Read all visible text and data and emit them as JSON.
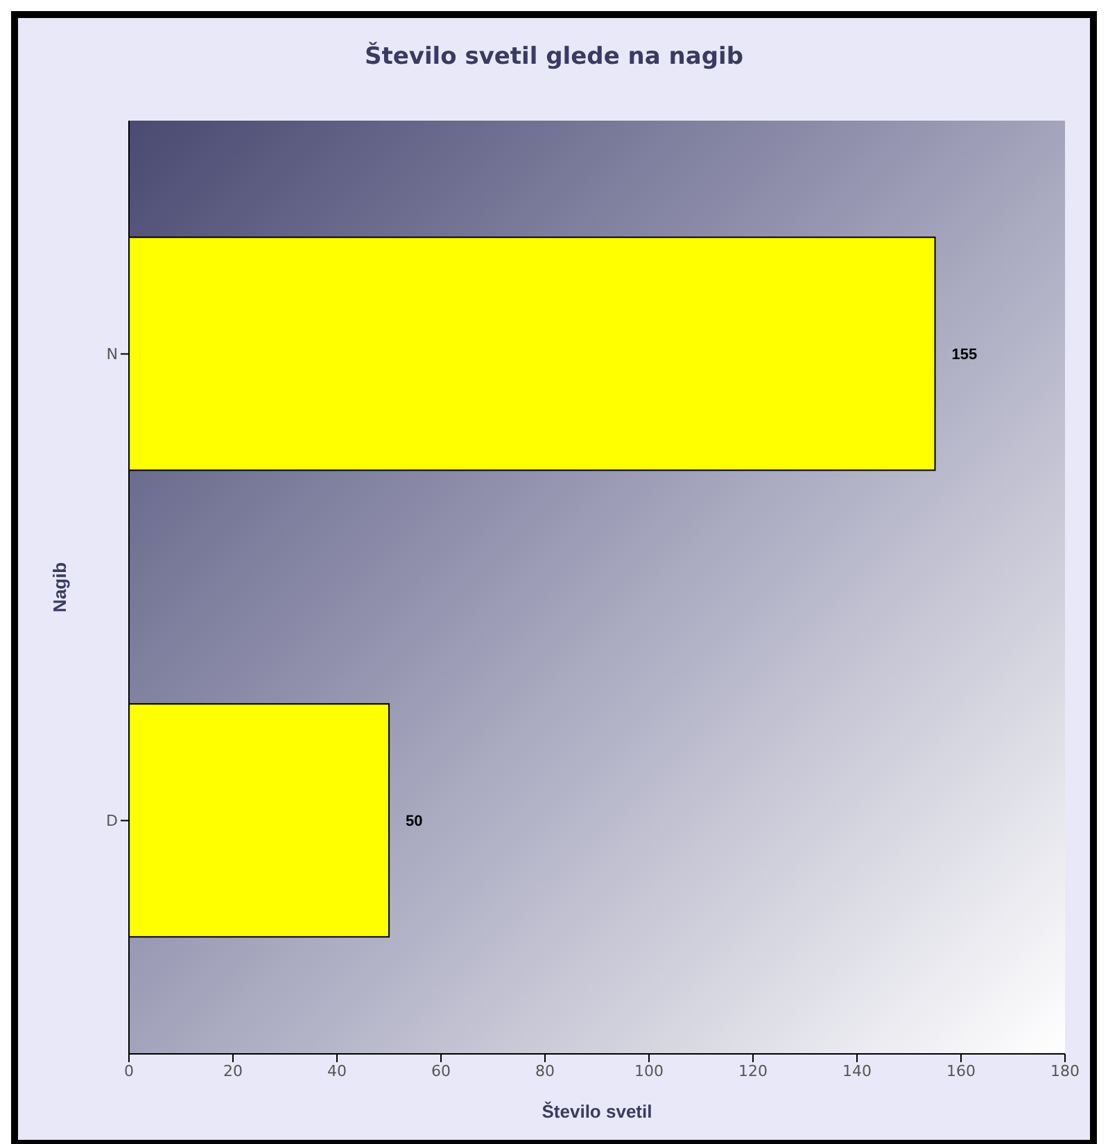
{
  "chart_data": {
    "type": "bar",
    "orientation": "horizontal",
    "title": "Število svetil glede na nagib",
    "xlabel": "Število svetil",
    "ylabel": "Nagib",
    "categories": [
      "N",
      "D"
    ],
    "values": [
      155,
      50
    ],
    "color": "#ffff00",
    "xlim": [
      0,
      180
    ],
    "xticks": [
      0,
      20,
      40,
      60,
      80,
      100,
      120,
      140,
      160,
      180
    ],
    "data_labels": true
  }
}
